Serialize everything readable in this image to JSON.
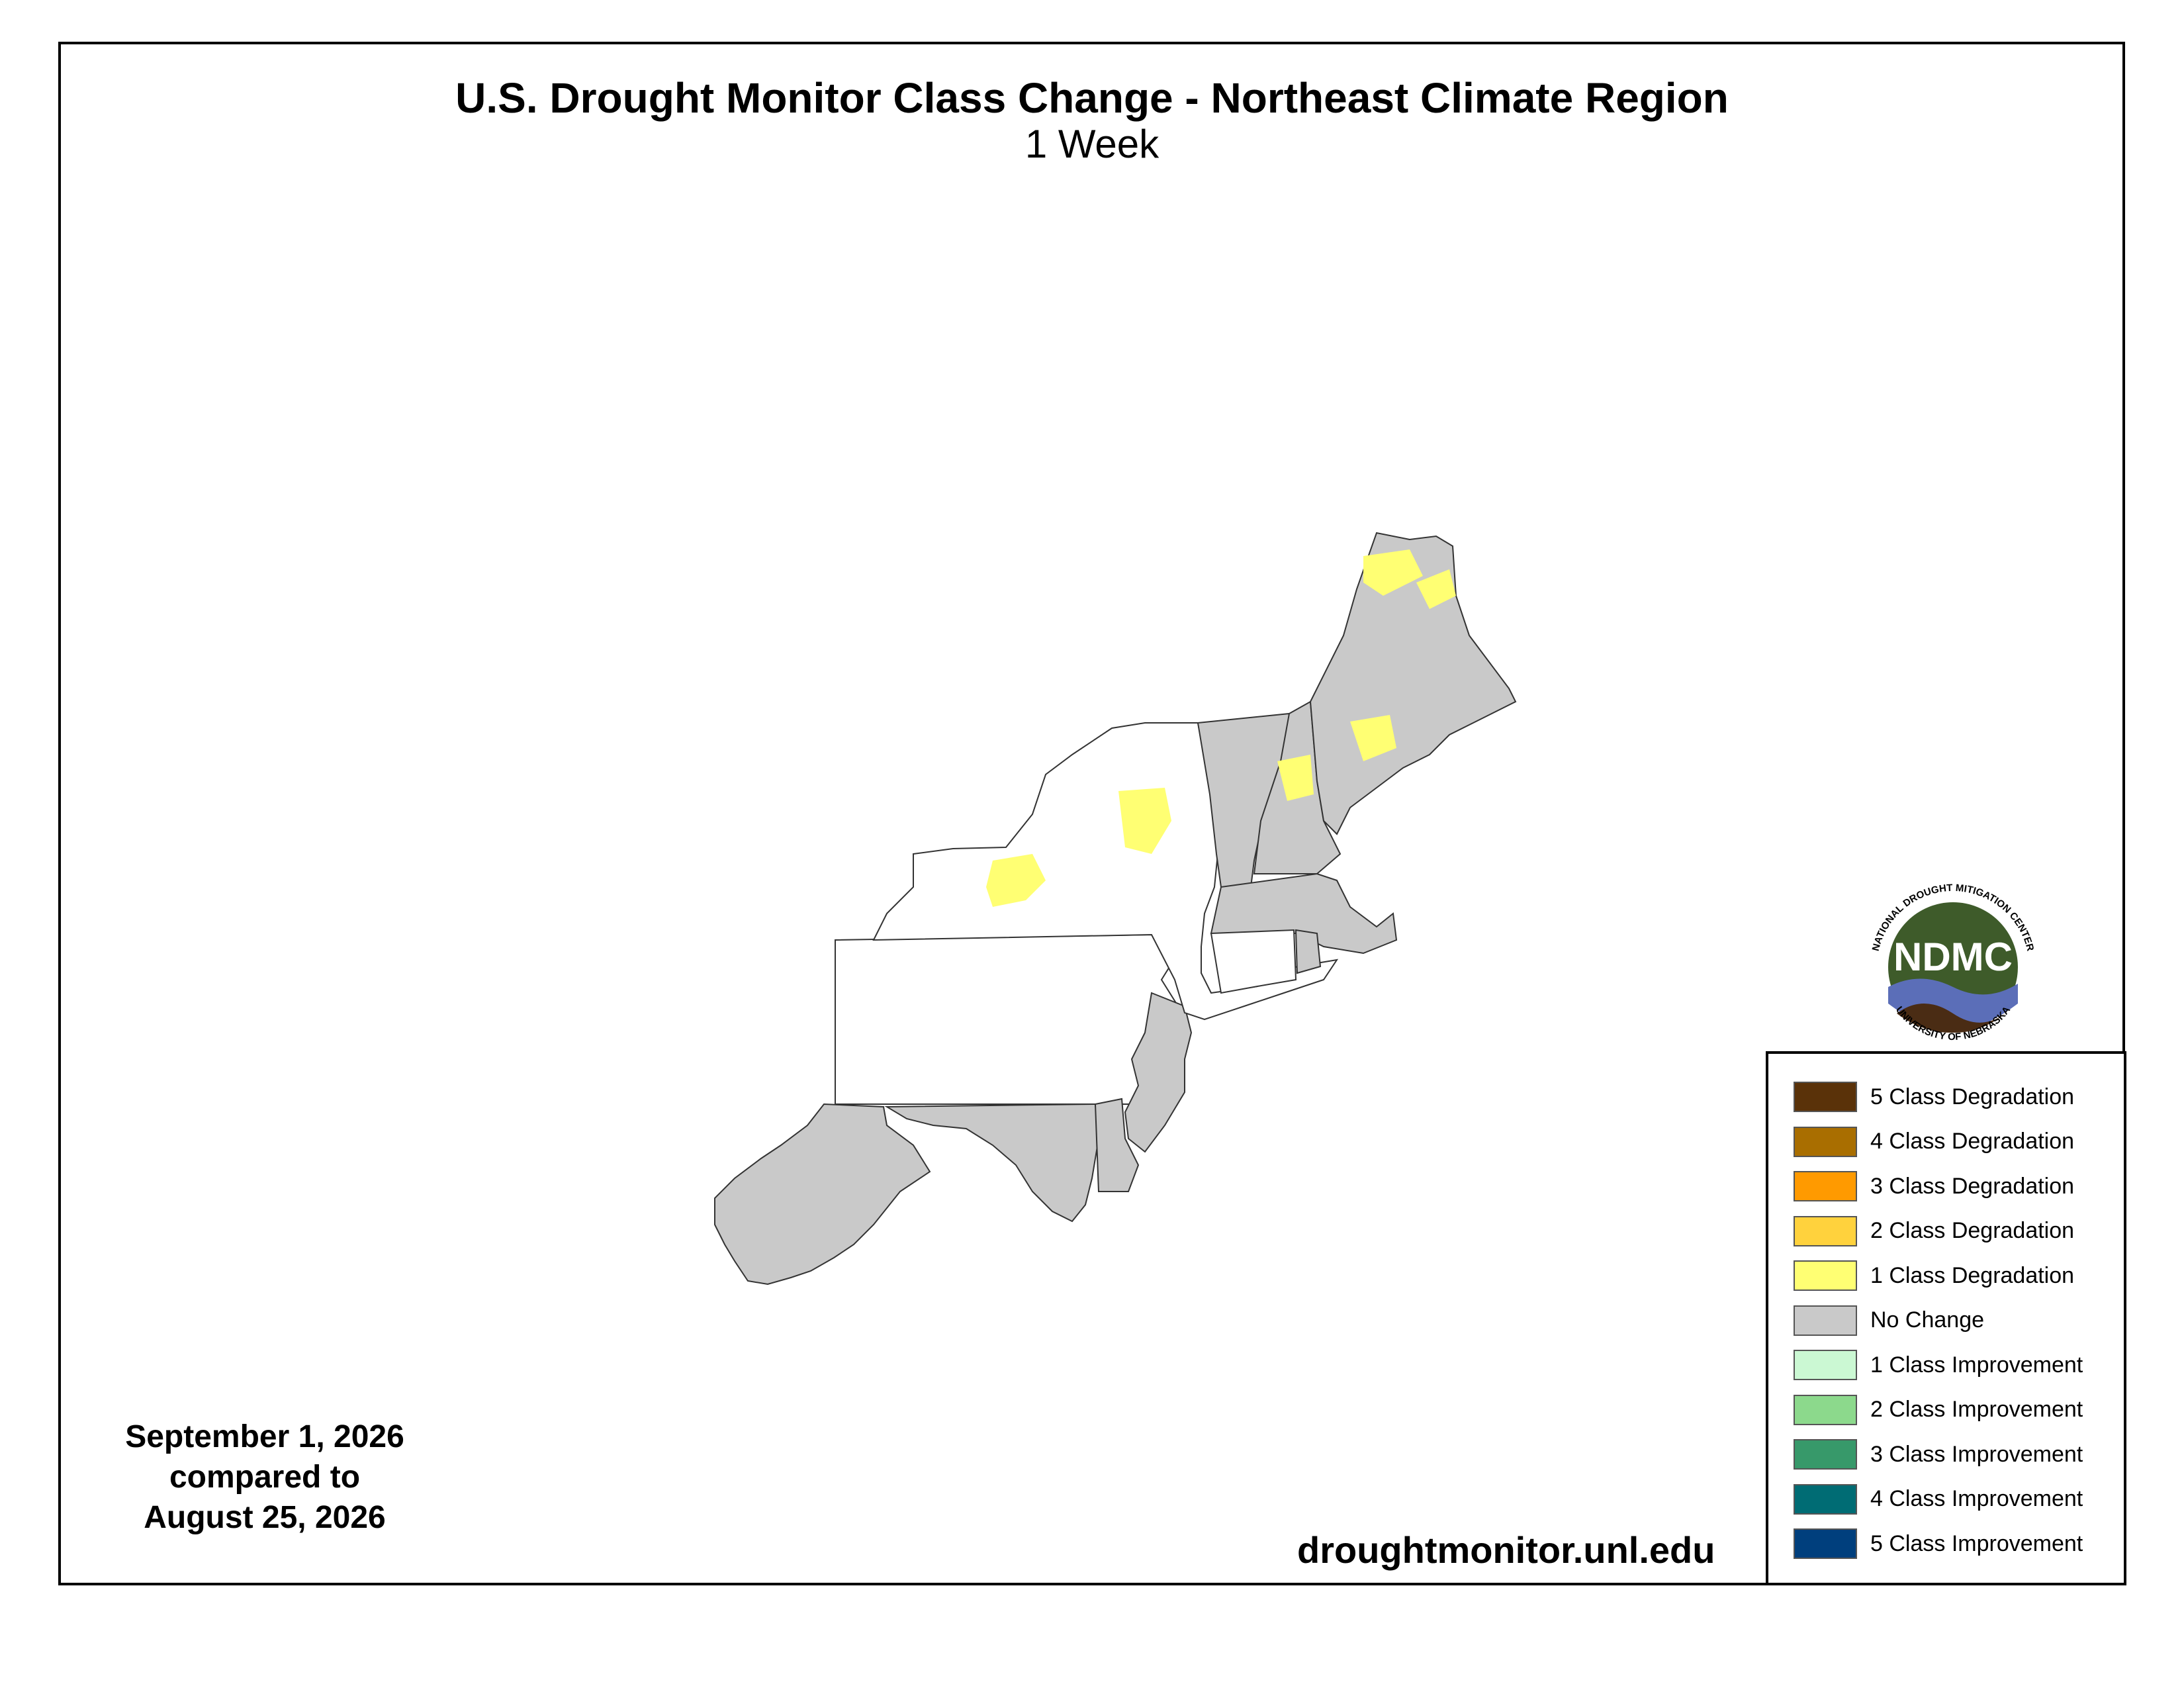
{
  "title": "U.S. Drought Monitor Class Change - Northeast Climate Region",
  "subtitle": "1 Week",
  "date_block": {
    "line1": "September 1, 2026",
    "line2": "compared to",
    "line3": "August 25, 2026"
  },
  "website": "droughtmonitor.unl.edu",
  "logo": {
    "initials": "NDMC",
    "top_text": "NATIONAL DROUGHT MITIGATION CENTER",
    "bottom_text": "UNIVERSITY OF NEBRASKA"
  },
  "legend": [
    {
      "label": "5 Class Degradation",
      "color": "#5a3209"
    },
    {
      "label": "4 Class Degradation",
      "color": "#a96e00"
    },
    {
      "label": "3 Class Degradation",
      "color": "#ff9a00"
    },
    {
      "label": "2 Class Degradation",
      "color": "#ffd23d"
    },
    {
      "label": "1 Class Degradation",
      "color": "#ffff73"
    },
    {
      "label": "No Change",
      "color": "#c9c9c9"
    },
    {
      "label": "1 Class Improvement",
      "color": "#cbf8d3"
    },
    {
      "label": "2 Class Improvement",
      "color": "#8cd98c"
    },
    {
      "label": "3 Class Improvement",
      "color": "#37996a"
    },
    {
      "label": "4 Class Improvement",
      "color": "#006c74"
    },
    {
      "label": "5 Class Improvement",
      "color": "#003f7d"
    }
  ],
  "map_regions": [
    {
      "name": "Maine",
      "fill": "#c9c9c9"
    },
    {
      "name": "New Hampshire",
      "fill": "#c9c9c9"
    },
    {
      "name": "Vermont",
      "fill": "#c9c9c9"
    },
    {
      "name": "Massachusetts",
      "fill": "#c9c9c9"
    },
    {
      "name": "Connecticut",
      "fill": "#ffffff"
    },
    {
      "name": "Rhode Island",
      "fill": "#c9c9c9"
    },
    {
      "name": "New York",
      "fill": "#ffffff"
    },
    {
      "name": "Pennsylvania",
      "fill": "#ffffff"
    },
    {
      "name": "New Jersey",
      "fill": "#c9c9c9"
    },
    {
      "name": "Delaware",
      "fill": "#c9c9c9"
    },
    {
      "name": "Maryland",
      "fill": "#c9c9c9"
    },
    {
      "name": "West Virginia",
      "fill": "#ffffff"
    }
  ]
}
